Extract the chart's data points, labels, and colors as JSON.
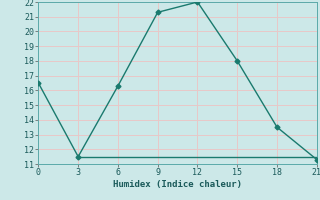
{
  "x": [
    0,
    3,
    6,
    9,
    12,
    15,
    18,
    21
  ],
  "y": [
    16.5,
    11.5,
    16.3,
    21.3,
    22.0,
    18.0,
    13.5,
    11.3
  ],
  "hline_y": 11.5,
  "hline_x_start": 3,
  "hline_x_end": 21,
  "xlabel": "Humidex (Indice chaleur)",
  "xlim": [
    0,
    21
  ],
  "ylim": [
    11,
    22
  ],
  "xticks": [
    0,
    3,
    6,
    9,
    12,
    15,
    18,
    21
  ],
  "yticks": [
    11,
    12,
    13,
    14,
    15,
    16,
    17,
    18,
    19,
    20,
    21,
    22
  ],
  "line_color": "#1a7a6e",
  "bg_color": "#cce8e8",
  "grid_color": "#e8c8c8",
  "marker": "D",
  "marker_size": 2.5,
  "line_width": 1.0
}
